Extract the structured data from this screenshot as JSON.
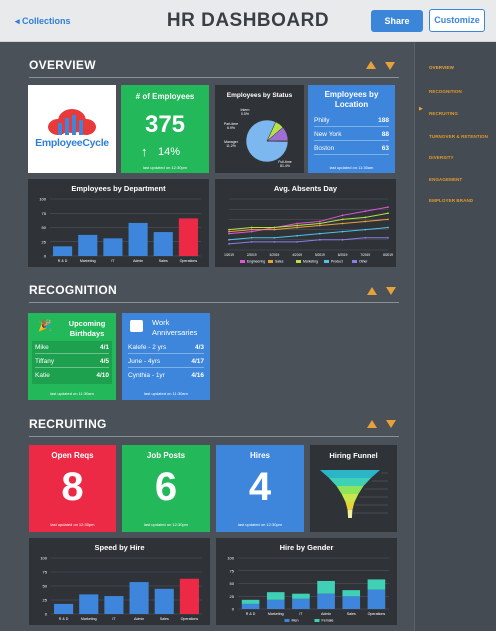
{
  "topbar": {
    "back_label": "◂ Collections",
    "title": "HR DASHBOARD",
    "share_label": "Share",
    "customize_label": "Customize"
  },
  "nav": {
    "items": [
      "OVERVIEW",
      "RECOGNITION",
      "RECRUITING",
      "TURNOVER & RETENTION",
      "DIVERSITY",
      "ENGAGEMENT",
      "EMPLOYER BRAND"
    ]
  },
  "colors": {
    "accent": "#e8a03a",
    "blue": "#3d86dc",
    "green": "#23b85a",
    "red": "#ec2a45",
    "panel": "#2f3338"
  },
  "overview": {
    "title": "OVERVIEW",
    "logo_text": "EmployeeCycle",
    "employees": {
      "title": "# of Employees",
      "value": "375",
      "change": "14%",
      "updated": "last updated on 12:30pm"
    },
    "by_status": {
      "title": "Employees by Status"
    },
    "by_location": {
      "title": "Employees by Location",
      "rows": [
        {
          "city": "Philly",
          "count": "188"
        },
        {
          "city": "New York",
          "count": "88"
        },
        {
          "city": "Boston",
          "count": "63"
        }
      ],
      "updated": "last updated on 11:30am"
    },
    "by_department": {
      "title": "Employees by Department"
    },
    "absents": {
      "title": "Avg. Absents Day"
    }
  },
  "recognition": {
    "title": "RECOGNITION",
    "birthdays": {
      "title": "Upcoming Birthdays",
      "rows": [
        {
          "name": "Mike",
          "date": "4/1"
        },
        {
          "name": "Tiffany",
          "date": "4/5"
        },
        {
          "name": "Katie",
          "date": "4/10"
        }
      ],
      "updated": "last updated on 11:30am"
    },
    "anniversaries": {
      "title": "Work Anniversaries",
      "rows": [
        {
          "name": "Kalefe - 2 yrs",
          "date": "4/3"
        },
        {
          "name": "June - 4yrs",
          "date": "4/17"
        },
        {
          "name": "Cynthia - 1yr",
          "date": "4/16"
        }
      ],
      "updated": "last updated on 11:30am"
    }
  },
  "recruiting": {
    "title": "RECRUITING",
    "open_reqs": {
      "title": "Open Reqs",
      "value": "8",
      "updated": "last updated on 12:30pm"
    },
    "job_posts": {
      "title": "Job Posts",
      "value": "6",
      "updated": "last updated on 12:30pm"
    },
    "hires": {
      "title": "Hires",
      "value": "4",
      "updated": "last updated on 12:30pm"
    },
    "funnel": {
      "title": "Hiring Funnel"
    },
    "speed": {
      "title": "Speed by Hire"
    },
    "gender": {
      "title": "Hire by Gender"
    }
  },
  "chart_data": [
    {
      "type": "pie",
      "title": "Employees by Status",
      "labels": [
        "Full-time",
        "Part-time",
        "Manager",
        "Intern"
      ],
      "values": [
        81.4,
        6.9,
        11.2,
        0.5
      ],
      "colors": [
        "#7db7ef",
        "#b8e04a",
        "#a06fd6",
        "#e7e74a"
      ]
    },
    {
      "type": "bar",
      "title": "Employees by Department",
      "categories": [
        "R & D",
        "Marketing",
        "IT",
        "Admin",
        "Sales",
        "Operations"
      ],
      "values": [
        17,
        37,
        31,
        58,
        42,
        66
      ],
      "ylim": [
        0,
        100
      ],
      "yticks": [
        "0",
        "25",
        "50",
        "75",
        "100"
      ],
      "colors": [
        "#3d86dc",
        "#3d86dc",
        "#3d86dc",
        "#3d86dc",
        "#3d86dc",
        "#ec2a45"
      ]
    },
    {
      "type": "line",
      "title": "Avg. Absents Day",
      "x": [
        "1/2019",
        "2/2019",
        "3/2019",
        "4/2019",
        "5/2019",
        "6/2019",
        "7/2019",
        "8/2019"
      ],
      "ylim": [
        0,
        25
      ],
      "series": [
        {
          "name": "Engineering",
          "color": "#e055d8",
          "values": [
            8,
            9,
            11,
            13,
            14,
            17,
            19,
            21
          ]
        },
        {
          "name": "Sales",
          "color": "#e8a03a",
          "values": [
            9,
            10,
            10,
            11,
            12,
            13,
            14,
            15
          ]
        },
        {
          "name": "Marketing",
          "color": "#b8e04a",
          "values": [
            10,
            11,
            11,
            12,
            13,
            15,
            16,
            18
          ]
        },
        {
          "name": "Product",
          "color": "#4fc2e8",
          "values": [
            5,
            6,
            6,
            7,
            8,
            9,
            10,
            11
          ]
        },
        {
          "name": "Other",
          "color": "#8a7ee8",
          "values": [
            3,
            4,
            4,
            4,
            5,
            5,
            6,
            6
          ]
        }
      ]
    },
    {
      "type": "funnel",
      "title": "Hiring Funnel",
      "values": [
        100,
        70,
        45,
        28,
        15,
        8
      ],
      "colors": [
        "#2bb5c8",
        "#3fd0b5",
        "#8ee35e",
        "#c8e64a",
        "#e8d23a",
        "#f0f0a0"
      ]
    },
    {
      "type": "bar",
      "title": "Speed by Hire",
      "categories": [
        "R & D",
        "Marketing",
        "IT",
        "Admin",
        "Sales",
        "Operations"
      ],
      "values": [
        18,
        35,
        32,
        57,
        45,
        63
      ],
      "ylim": [
        0,
        100
      ],
      "yticks": [
        "0",
        "25",
        "50",
        "75",
        "100"
      ],
      "colors": [
        "#3d86dc",
        "#3d86dc",
        "#3d86dc",
        "#3d86dc",
        "#3d86dc",
        "#ec2a45"
      ]
    },
    {
      "type": "bar",
      "title": "Hire by Gender",
      "categories": [
        "R & D",
        "Marketing",
        "IT",
        "Admin",
        "Sales",
        "Operations"
      ],
      "ylim": [
        0,
        100
      ],
      "yticks": [
        "0",
        "25",
        "50",
        "75",
        "100"
      ],
      "series": [
        {
          "name": "Men",
          "color": "#3d86dc",
          "values": [
            10,
            18,
            20,
            30,
            25,
            38
          ]
        },
        {
          "name": "Female",
          "color": "#3fd0b5",
          "values": [
            8,
            15,
            10,
            25,
            12,
            20
          ]
        }
      ]
    }
  ]
}
